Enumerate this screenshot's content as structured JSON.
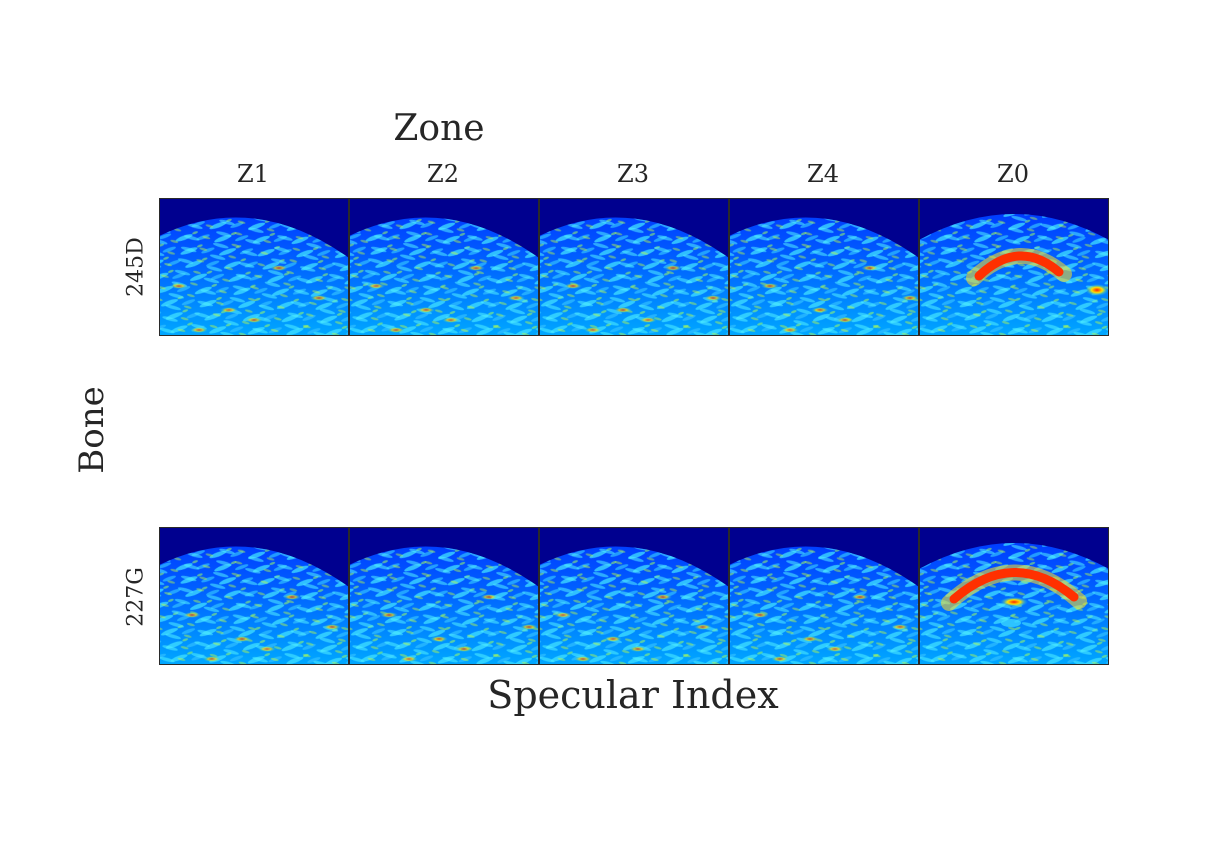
{
  "figure": {
    "top_title": "Zone",
    "bottom_title": "Specular Index",
    "left_title": "Bone",
    "columns": [
      "Z1",
      "Z2",
      "Z3",
      "Z4",
      "Z0"
    ],
    "rows": [
      "245D",
      "227G"
    ],
    "colormap": "jet",
    "colors": {
      "background_inside": "#00008f",
      "panel_border": "#2a2a2a"
    }
  }
}
